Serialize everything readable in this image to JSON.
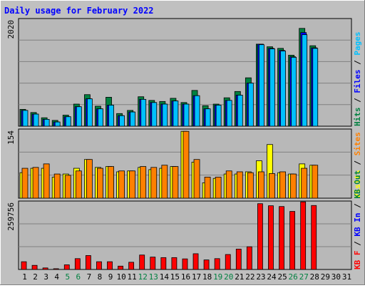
{
  "title": "Daily usage for February 2022",
  "colors": {
    "background": "#c0c0c0",
    "plot_bg": "#b8b8b8",
    "title": "#0000ff",
    "hits": "#008040",
    "files": "#0000ff",
    "pages": "#00c0ff",
    "visits": "#ffff00",
    "sites": "#ff8000",
    "kbf": "#ff0000",
    "kbin": "#0000ff",
    "kbout": "#008040",
    "weekend_label": "#008040",
    "day_label": "#000000"
  },
  "chart_data": [
    {
      "type": "bar",
      "panel": "top",
      "ymax_label": "2020",
      "ylim": [
        0,
        2020
      ],
      "legend": [
        {
          "text": "Hits",
          "color_key": "hits"
        },
        {
          "text": "Files",
          "color_key": "files"
        },
        {
          "text": "Pages",
          "color_key": "pages"
        }
      ],
      "categories": [
        1,
        2,
        3,
        4,
        5,
        6,
        7,
        8,
        9,
        10,
        11,
        12,
        13,
        14,
        15,
        16,
        17,
        18,
        19,
        20,
        21,
        22,
        23,
        24,
        25,
        26,
        27,
        28,
        29,
        30,
        31
      ],
      "series": [
        {
          "name": "Hits",
          "values": [
            320,
            260,
            160,
            110,
            210,
            420,
            600,
            380,
            550,
            240,
            300,
            560,
            490,
            470,
            530,
            450,
            680,
            390,
            420,
            540,
            660,
            920,
            1560,
            1510,
            1480,
            1350,
            1860,
            1530,
            0,
            0,
            0
          ]
        },
        {
          "name": "Files",
          "values": [
            300,
            230,
            130,
            80,
            180,
            370,
            520,
            330,
            400,
            200,
            270,
            510,
            450,
            420,
            480,
            420,
            580,
            330,
            400,
            490,
            590,
            820,
            1560,
            1480,
            1440,
            1320,
            1780,
            1490,
            0,
            0,
            0
          ]
        },
        {
          "name": "Pages",
          "values": [
            300,
            230,
            130,
            80,
            180,
            370,
            520,
            330,
            400,
            200,
            270,
            510,
            450,
            420,
            480,
            420,
            580,
            330,
            400,
            490,
            590,
            820,
            1550,
            1470,
            1430,
            1310,
            1740,
            1480,
            0,
            0,
            0
          ]
        }
      ]
    },
    {
      "type": "bar",
      "panel": "middle",
      "ymax_label": "154",
      "ylim": [
        0,
        154
      ],
      "legend": [
        {
          "text": "Visits",
          "color_key": "visits"
        },
        {
          "text": "Sites",
          "color_key": "sites"
        }
      ],
      "categories": [
        1,
        2,
        3,
        4,
        5,
        6,
        7,
        8,
        9,
        10,
        11,
        12,
        13,
        14,
        15,
        16,
        17,
        18,
        19,
        20,
        21,
        22,
        23,
        24,
        25,
        26,
        27,
        28,
        29,
        30,
        31
      ],
      "series": [
        {
          "name": "Visits",
          "values": [
            58,
            68,
            68,
            48,
            55,
            68,
            88,
            70,
            72,
            60,
            62,
            70,
            65,
            68,
            72,
            152,
            82,
            35,
            45,
            55,
            55,
            60,
            85,
            122,
            58,
            55,
            78,
            75,
            0,
            0,
            0
          ]
        },
        {
          "name": "Sites",
          "values": [
            68,
            70,
            78,
            55,
            52,
            62,
            88,
            68,
            72,
            62,
            62,
            72,
            70,
            75,
            72,
            152,
            88,
            48,
            48,
            62,
            60,
            58,
            60,
            56,
            60,
            55,
            68,
            75,
            0,
            0,
            0
          ]
        }
      ]
    },
    {
      "type": "bar",
      "panel": "bottom",
      "ymax_label": "259756",
      "ylim": [
        0,
        259756
      ],
      "legend": [
        {
          "text": "KB F",
          "color_key": "kbf"
        },
        {
          "text": "KB In",
          "color_key": "kbin"
        },
        {
          "text": "KB Out",
          "color_key": "kbout"
        }
      ],
      "categories": [
        1,
        2,
        3,
        4,
        5,
        6,
        7,
        8,
        9,
        10,
        11,
        12,
        13,
        14,
        15,
        16,
        17,
        18,
        19,
        20,
        21,
        22,
        23,
        24,
        25,
        26,
        27,
        28,
        29,
        30,
        31
      ],
      "series": [
        {
          "name": "KB F",
          "values": [
            30000,
            16000,
            6000,
            3000,
            18000,
            42000,
            54000,
            30000,
            30000,
            13000,
            28000,
            56000,
            48000,
            46000,
            46000,
            41000,
            61000,
            37000,
            42000,
            58000,
            79000,
            88000,
            255000,
            247000,
            244000,
            225000,
            262000,
            248000,
            0,
            0,
            0
          ]
        }
      ]
    }
  ],
  "weekend_days": [
    5,
    6,
    12,
    13,
    19,
    20,
    26,
    27
  ]
}
